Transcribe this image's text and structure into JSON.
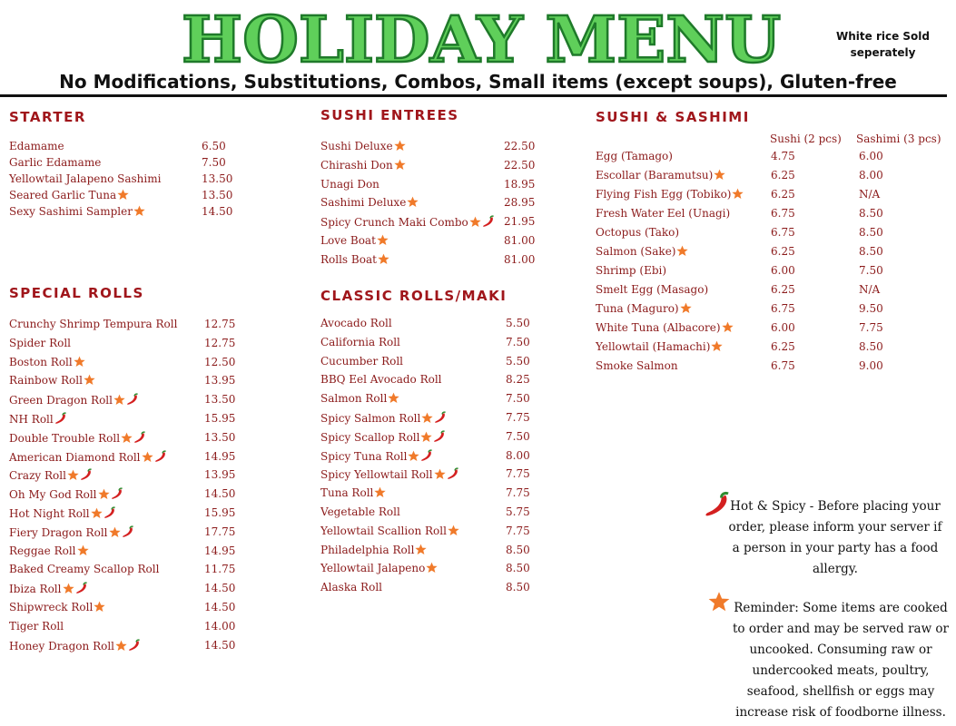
{
  "header": {
    "title": "HOLIDAY MENU",
    "note": "White rice Sold seperately",
    "subtitle": "No Modifications, Substitutions, Combos, Small items (except soups), Gluten-free"
  },
  "starter": {
    "heading": "STARTER",
    "items": [
      {
        "name": "Edamame",
        "price": "6.50"
      },
      {
        "name": "Garlic Edamame",
        "price": "7.50"
      },
      {
        "name": "Yellowtail Jalapeno Sashimi",
        "price": "13.50"
      },
      {
        "name": "Seared Garlic Tuna",
        "price": "13.50"
      },
      {
        "name": "Sexy Sashimi Sampler",
        "price": "14.50"
      }
    ]
  },
  "special_rolls": {
    "heading": "SPECIAL ROLLS",
    "items": [
      {
        "name": "Crunchy Shrimp Tempura Roll",
        "price": "12.75"
      },
      {
        "name": "Spider Roll",
        "price": "12.75"
      },
      {
        "name": "Boston Roll",
        "price": "12.50"
      },
      {
        "name": "Rainbow Roll",
        "price": "13.95"
      },
      {
        "name": "Green Dragon Roll",
        "price": "13.50"
      },
      {
        "name": "NH Roll",
        "price": "15.95"
      },
      {
        "name": "Double Trouble Roll",
        "price": "13.50"
      },
      {
        "name": "American Diamond Roll",
        "price": "14.95"
      },
      {
        "name": "Crazy Roll",
        "price": "13.95"
      },
      {
        "name": "Oh My God Roll",
        "price": "14.50"
      },
      {
        "name": "Hot Night Roll",
        "price": "15.95"
      },
      {
        "name": "Fiery Dragon Roll",
        "price": "17.75"
      },
      {
        "name": "Reggae Roll",
        "price": "14.95"
      },
      {
        "name": "Baked Creamy Scallop Roll",
        "price": "11.75"
      },
      {
        "name": "Ibiza Roll",
        "price": "14.50"
      },
      {
        "name": "Shipwreck Roll",
        "price": "14.50"
      },
      {
        "name": "Tiger Roll",
        "price": "14.00"
      },
      {
        "name": "Honey Dragon Roll",
        "price": "14.50"
      }
    ]
  },
  "sushi_entrees": {
    "heading": "SUSHI ENTREES",
    "items": [
      {
        "name": "Sushi Deluxe",
        "price": "22.50"
      },
      {
        "name": "Chirashi Don",
        "price": "22.50"
      },
      {
        "name": "Unagi Don",
        "price": "18.95"
      },
      {
        "name": "Sashimi Deluxe",
        "price": "28.95"
      },
      {
        "name": "Spicy Crunch Maki Combo",
        "price": "21.95"
      },
      {
        "name": "Love Boat",
        "price": "81.00"
      },
      {
        "name": "Rolls Boat",
        "price": "81.00"
      }
    ]
  },
  "classic_rolls": {
    "heading": "CLASSIC ROLLS/MAKI",
    "items": [
      {
        "name": "Avocado Roll",
        "price": "5.50"
      },
      {
        "name": "California Roll",
        "price": "7.50"
      },
      {
        "name": "Cucumber Roll",
        "price": "5.50"
      },
      {
        "name": "BBQ Eel Avocado Roll",
        "price": "8.25"
      },
      {
        "name": "Salmon Roll",
        "price": "7.50"
      },
      {
        "name": "Spicy Salmon Roll",
        "price": "7.75"
      },
      {
        "name": "Spicy Scallop Roll",
        "price": "7.50"
      },
      {
        "name": "Spicy Tuna Roll",
        "price": "8.00"
      },
      {
        "name": "Spicy Yellowtail Roll",
        "price": "7.75"
      },
      {
        "name": "Tuna Roll",
        "price": "7.75"
      },
      {
        "name": "Vegetable Roll",
        "price": "5.75"
      },
      {
        "name": "Yellowtail Scallion Roll",
        "price": "7.75"
      },
      {
        "name": "Philadelphia Roll",
        "price": "8.50"
      },
      {
        "name": "Yellowtail Jalapeno",
        "price": "8.50"
      },
      {
        "name": "Alaska Roll",
        "price": "8.50"
      }
    ]
  },
  "sushi_sashimi": {
    "heading": "SUSHI & SASHIMI",
    "columns": [
      "Sushi (2 pcs)",
      "Sashimi (3 pcs)"
    ],
    "items": [
      {
        "name": "Egg (Tamago)",
        "sushi": "4.75",
        "sashimi": "6.00"
      },
      {
        "name": "Escollar (Baramutsu)",
        "sushi": "6.25",
        "sashimi": "8.00"
      },
      {
        "name": "Flying Fish Egg (Tobiko)",
        "sushi": "6.25",
        "sashimi": "N/A"
      },
      {
        "name": "Fresh Water Eel (Unagi)",
        "sushi": "6.75",
        "sashimi": "8.50"
      },
      {
        "name": "Octopus (Tako)",
        "sushi": "6.75",
        "sashimi": "8.50"
      },
      {
        "name": "Salmon (Sake)",
        "sushi": "6.25",
        "sashimi": "8.50"
      },
      {
        "name": "Shrimp (Ebi)",
        "sushi": "6.00",
        "sashimi": "7.50"
      },
      {
        "name": "Smelt Egg (Masago)",
        "sushi": "6.25",
        "sashimi": "N/A"
      },
      {
        "name": "Tuna (Maguro)",
        "sushi": "6.75",
        "sashimi": "9.50"
      },
      {
        "name": "White Tuna (Albacore)",
        "sushi": "6.00",
        "sashimi": "7.75"
      },
      {
        "name": "Yellowtail (Hamachi)",
        "sushi": "6.25",
        "sashimi": "8.50"
      },
      {
        "name": "Smoke Salmon",
        "sushi": "6.75",
        "sashimi": "9.00"
      }
    ]
  },
  "notes": {
    "spicy": "Hot & Spicy - Before placing your order, please inform your server if a person in your party has a food allergy.",
    "reminder": "Reminder: Some items are cooked to order and may be served raw or uncooked. Consuming raw or undercooked meats, poultry, seafood, shellfish or eggs may increase risk of foodborne illness."
  }
}
